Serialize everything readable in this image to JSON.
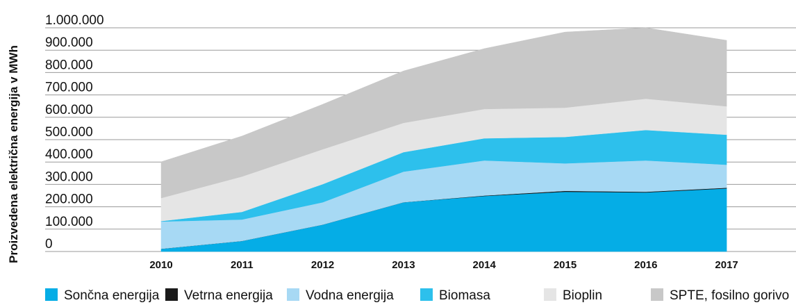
{
  "chart_data": {
    "type": "stacked_area",
    "y_label": "Proizvedena električna energija v MWh",
    "categories": [
      "2010",
      "2011",
      "2012",
      "2013",
      "2014",
      "2015",
      "2016",
      "2017"
    ],
    "series": [
      {
        "name": "Sončna energija",
        "color": "#05ade6",
        "values": [
          12000,
          47000,
          120000,
          220000,
          248000,
          267000,
          264000,
          282000
        ]
      },
      {
        "name": "Vetrna energija",
        "color": "#1a1a1a",
        "values": [
          0,
          0,
          0,
          0,
          2000,
          4000,
          3000,
          3000
        ]
      },
      {
        "name": "Vodna energija",
        "color": "#a7d9f4",
        "values": [
          122000,
          96000,
          100000,
          137000,
          157000,
          123000,
          140000,
          103000
        ]
      },
      {
        "name": "Biomasa",
        "color": "#2dc0ec",
        "values": [
          2000,
          34000,
          81000,
          87000,
          99000,
          118000,
          136000,
          134000
        ]
      },
      {
        "name": "Bioplin",
        "color": "#e5e5e5",
        "values": [
          103000,
          158000,
          156000,
          131000,
          131000,
          131000,
          140000,
          127000
        ]
      },
      {
        "name": "SPTE, fosilno gorivo",
        "color": "#c8c8c8",
        "values": [
          162000,
          181000,
          201000,
          232000,
          270000,
          338000,
          317000,
          295000
        ]
      }
    ],
    "ylim": [
      0,
      1000000
    ],
    "yticks": [
      0,
      {
        "value": 100000,
        "label": "100.000"
      },
      {
        "value": 200000,
        "label": "200.000"
      },
      {
        "value": 300000,
        "label": "300.000"
      },
      {
        "value": 400000,
        "label": "400.000"
      },
      {
        "value": 500000,
        "label": "500.000"
      },
      {
        "value": 600000,
        "label": "600.000"
      },
      {
        "value": 700000,
        "label": "700.000"
      },
      {
        "value": 800000,
        "label": "800.000"
      },
      {
        "value": 900000,
        "label": "900.000"
      },
      {
        "value": 1000000,
        "label": "1.000.000"
      }
    ],
    "grid": true
  }
}
